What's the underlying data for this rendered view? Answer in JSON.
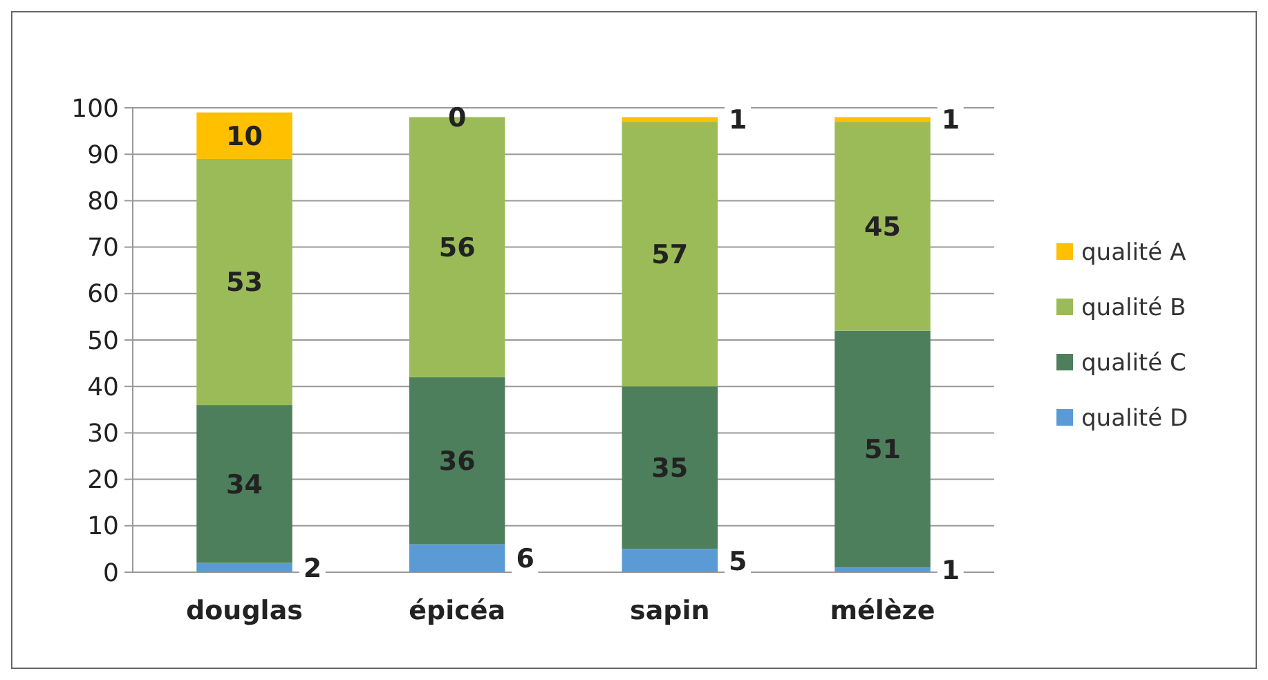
{
  "chart_data": {
    "type": "bar",
    "stacked": true,
    "categories": [
      "douglas",
      "épicéa",
      "sapin",
      "mélèze"
    ],
    "series": [
      {
        "name": "qualité D",
        "color": "#5b9bd5",
        "values": [
          2,
          6,
          5,
          1
        ]
      },
      {
        "name": "qualité C",
        "color": "#4e7f5c",
        "values": [
          34,
          36,
          35,
          51
        ]
      },
      {
        "name": "qualité B",
        "color": "#9bbb59",
        "values": [
          53,
          56,
          57,
          45
        ]
      },
      {
        "name": "qualité A",
        "color": "#ffc000",
        "values": [
          10,
          0,
          1,
          1
        ]
      }
    ],
    "ylim": [
      0,
      100
    ],
    "yticks": [
      0,
      10,
      20,
      30,
      40,
      50,
      60,
      70,
      80,
      90,
      100
    ],
    "grid": "y",
    "legend": "right",
    "data_labels": true
  }
}
